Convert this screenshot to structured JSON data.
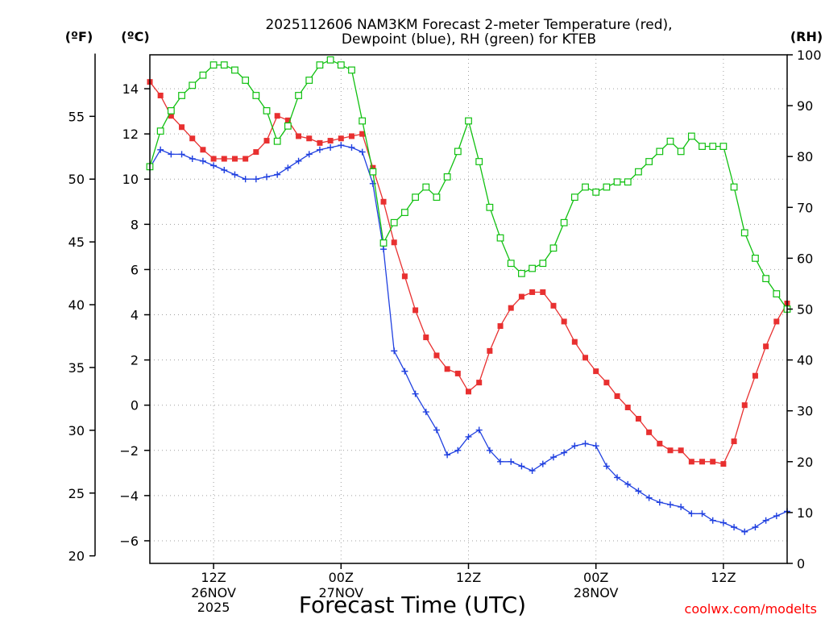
{
  "chart_data": {
    "type": "line",
    "title": "2025112606 NAM3KM Forecast 2-meter Temperature (red),",
    "subtitle": "Dewpoint (blue), RH (green) for KTEB",
    "xlabel": "Forecast Time (UTC)",
    "credit": "coolwx.com/modelts",
    "units": {
      "fahrenheit": "(ºF)",
      "celsius": "(ºC)",
      "rh": "(RH)"
    },
    "x": {
      "start_hour": 6,
      "end_hour": 66,
      "step_hours": 1
    },
    "xticks": [
      {
        "hour": 12,
        "label": "12Z",
        "sublabel": "26NOV",
        "year": "2025"
      },
      {
        "hour": 24,
        "label": "00Z",
        "sublabel": "27NOV",
        "year": ""
      },
      {
        "hour": 36,
        "label": "12Z",
        "sublabel": "",
        "year": ""
      },
      {
        "hour": 48,
        "label": "00Z",
        "sublabel": "28NOV",
        "year": ""
      },
      {
        "hour": 60,
        "label": "12Z",
        "sublabel": "",
        "year": ""
      }
    ],
    "celsius_axis": {
      "min": -7,
      "max": 15.5,
      "ticks": [
        -6,
        -4,
        -2,
        0,
        2,
        4,
        6,
        8,
        10,
        12,
        14
      ]
    },
    "fahrenheit_axis": {
      "min": 20,
      "max": 60,
      "ticks": [
        20,
        25,
        30,
        35,
        40,
        45,
        50,
        55
      ]
    },
    "rh_axis": {
      "min": 0,
      "max": 100,
      "ticks": [
        0,
        10,
        20,
        30,
        40,
        50,
        60,
        70,
        80,
        90,
        100
      ]
    },
    "series": [
      {
        "name": "2-meter Temperature",
        "axis": "celsius",
        "color": "#e83030",
        "marker": "filled-square",
        "values": [
          14.3,
          13.7,
          12.8,
          12.3,
          11.8,
          11.3,
          10.9,
          10.9,
          10.9,
          10.9,
          11.2,
          11.7,
          12.8,
          12.6,
          11.9,
          11.8,
          11.6,
          11.7,
          11.8,
          11.9,
          12.0,
          10.5,
          9.0,
          7.2,
          5.7,
          4.2,
          3.0,
          2.2,
          1.6,
          1.4,
          0.6,
          1.0,
          2.4,
          3.5,
          4.3,
          4.8,
          5.0,
          5.0,
          4.4,
          3.7,
          2.8,
          2.1,
          1.5,
          1.0,
          0.4,
          -0.1,
          -0.6,
          -1.2,
          -1.7,
          -2.0,
          -2.0,
          -2.5,
          -2.5,
          -2.5,
          -2.6,
          -1.6,
          0.0,
          1.3,
          2.6,
          3.7,
          4.5
        ]
      },
      {
        "name": "Dewpoint",
        "axis": "celsius",
        "color": "#2040e0",
        "marker": "plus",
        "values": [
          10.5,
          11.3,
          11.1,
          11.1,
          10.9,
          10.8,
          10.6,
          10.4,
          10.2,
          10.0,
          10.0,
          10.1,
          10.2,
          10.5,
          10.8,
          11.1,
          11.3,
          11.4,
          11.5,
          11.4,
          11.2,
          9.8,
          6.9,
          2.4,
          1.5,
          0.5,
          -0.3,
          -1.1,
          -2.2,
          -2.0,
          -1.4,
          -1.1,
          -2.0,
          -2.5,
          -2.5,
          -2.7,
          -2.9,
          -2.6,
          -2.3,
          -2.1,
          -1.8,
          -1.7,
          -1.8,
          -2.7,
          -3.2,
          -3.5,
          -3.8,
          -4.1,
          -4.3,
          -4.4,
          -4.5,
          -4.8,
          -4.8,
          -5.1,
          -5.2,
          -5.4,
          -5.6,
          -5.4,
          -5.1,
          -4.9,
          -4.7
        ]
      },
      {
        "name": "RH",
        "axis": "rh",
        "color": "#10c010",
        "marker": "open-square",
        "values": [
          78,
          85,
          89,
          92,
          94,
          96,
          98,
          98,
          97,
          95,
          92,
          89,
          83,
          86,
          92,
          95,
          98,
          99,
          98,
          97,
          87,
          77,
          63,
          67,
          69,
          72,
          74,
          72,
          76,
          81,
          87,
          79,
          70,
          64,
          59,
          57,
          58,
          59,
          62,
          67,
          72,
          74,
          73,
          74,
          75,
          75,
          77,
          79,
          81,
          83,
          81,
          84,
          82,
          82,
          82,
          74,
          65,
          60,
          56,
          53,
          50
        ]
      }
    ]
  }
}
